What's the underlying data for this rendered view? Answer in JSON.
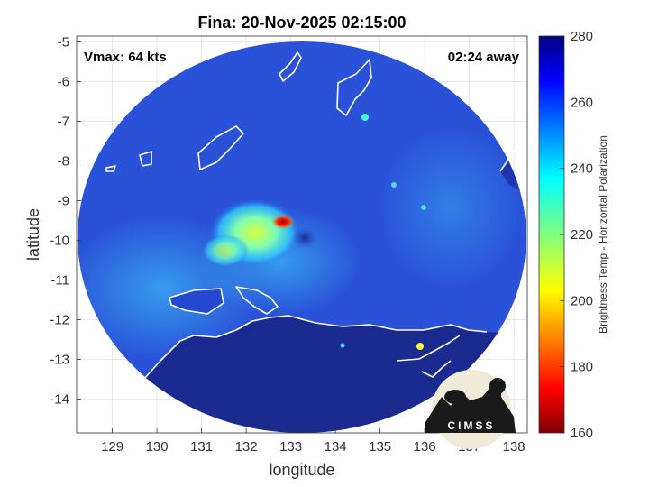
{
  "chart_data": {
    "type": "heatmap",
    "title": "Fina: 20-Nov-2025 02:15:00",
    "xlabel": "longitude",
    "ylabel": "latitude",
    "xlim": [
      128.2,
      138.3
    ],
    "ylim": [
      -14.85,
      -4.85
    ],
    "xticks": [
      129,
      130,
      131,
      132,
      133,
      134,
      135,
      136,
      137,
      138
    ],
    "xtick_labels": [
      "129",
      "130",
      "131",
      "132",
      "133",
      "134",
      "135",
      "136",
      "137",
      "138"
    ],
    "yticks": [
      -5,
      -6,
      -7,
      -8,
      -9,
      -10,
      -11,
      -12,
      -13,
      -14
    ],
    "ytick_labels": [
      "-5",
      "-6",
      "-7",
      "-8",
      "-9",
      "-10",
      "-11",
      "-12",
      "-13",
      "-14"
    ],
    "grid": true,
    "swath_center": {
      "lon": 133.2,
      "lat": -9.75
    },
    "storm_center": {
      "lon": 133.1,
      "lat": -9.95
    },
    "colorbar": {
      "label": "Brightness Temp - Horizontal Polarization",
      "range": [
        160,
        280
      ],
      "ticks": [
        160,
        180,
        200,
        220,
        240,
        260,
        280
      ],
      "tick_labels": [
        "160",
        "180",
        "200",
        "220",
        "240",
        "260",
        "280"
      ],
      "colormap": "jet"
    },
    "annotations": {
      "vmax": "Vmax: 64 kts",
      "away": "02:24 away"
    },
    "features": [
      {
        "name": "background",
        "lon": 133.2,
        "lat": -9.75,
        "value": 258
      },
      {
        "name": "spiral band",
        "lon": 132.2,
        "lat": -10.1,
        "value": 215
      },
      {
        "name": "convective core",
        "lon": 132.8,
        "lat": -9.55,
        "value": 178
      },
      {
        "name": "eye",
        "lon": 133.1,
        "lat": -9.95,
        "value": 268
      },
      {
        "name": "land",
        "lon": 133.5,
        "lat": -13.5,
        "value": 277
      }
    ]
  },
  "logo": {
    "text": "CIMSS"
  },
  "colors": {
    "land_fill": "#1b2a8f",
    "ocean_fill": "#2850d8",
    "coastline": "#ffffff",
    "grid": "#d9d9d9"
  }
}
